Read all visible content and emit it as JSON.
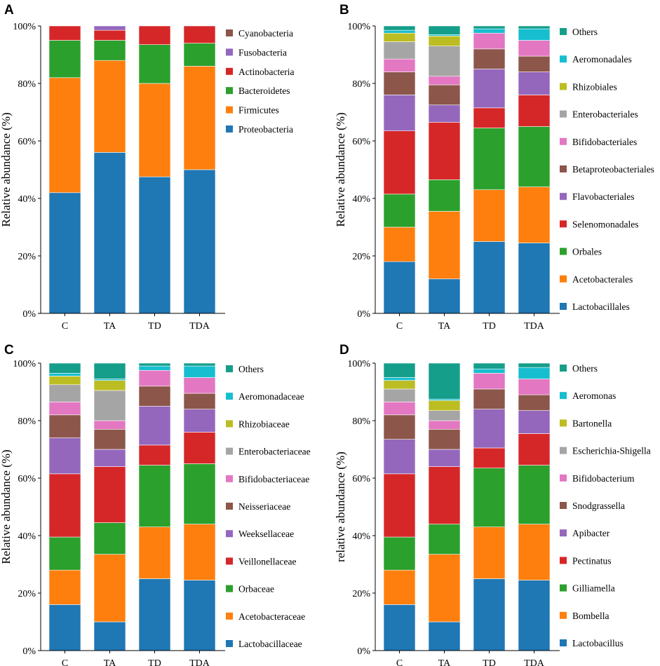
{
  "chart_data": [
    {
      "type": "bar",
      "panel": "A",
      "stacked": true,
      "ylabel": "Relative abundance (%)",
      "ylim": [
        0,
        100
      ],
      "yticks": [
        "0%",
        "20%",
        "40%",
        "60%",
        "80%",
        "100%"
      ],
      "categories": [
        "C",
        "TA",
        "TD",
        "TDA"
      ],
      "series": [
        {
          "name": "Proteobacteria",
          "color": "#1f77b4",
          "values": [
            42,
            56,
            47.5,
            50
          ]
        },
        {
          "name": "Firmicutes",
          "color": "#ff7f0e",
          "values": [
            40,
            32,
            32.5,
            36
          ]
        },
        {
          "name": "Bacteroidetes",
          "color": "#2ca02c",
          "values": [
            13,
            7,
            13.5,
            8
          ]
        },
        {
          "name": "Actinobacteria",
          "color": "#d62728",
          "values": [
            5,
            3.5,
            6.5,
            6
          ]
        },
        {
          "name": "Fusobacteria",
          "color": "#9467bd",
          "values": [
            0,
            1.5,
            0,
            0
          ]
        },
        {
          "name": "Cyanobacteria",
          "color": "#8c564b",
          "values": [
            0,
            0,
            0,
            0
          ]
        }
      ]
    },
    {
      "type": "bar",
      "panel": "B",
      "stacked": true,
      "ylabel": "Relative abundance (%)",
      "ylim": [
        0,
        100
      ],
      "yticks": [
        "0%",
        "20%",
        "40%",
        "60%",
        "80%",
        "100%"
      ],
      "categories": [
        "C",
        "TA",
        "TD",
        "TDA"
      ],
      "series": [
        {
          "name": "Lactobacillales",
          "color": "#1f77b4",
          "values": [
            18,
            12,
            25,
            24.5
          ]
        },
        {
          "name": "Acetobacterales",
          "color": "#ff7f0e",
          "values": [
            12,
            23.5,
            18,
            19.5
          ]
        },
        {
          "name": "Orbales",
          "color": "#2ca02c",
          "values": [
            11.5,
            11,
            21.5,
            21
          ]
        },
        {
          "name": "Selenomonadales",
          "color": "#d62728",
          "values": [
            22,
            20,
            7,
            11
          ]
        },
        {
          "name": "Flavobacteriales",
          "color": "#9467bd",
          "values": [
            12.5,
            6,
            13.5,
            8
          ]
        },
        {
          "name": "Betaproteobacteriales",
          "color": "#8c564b",
          "values": [
            8,
            7,
            7,
            5.5
          ]
        },
        {
          "name": "Bifidobacteriales",
          "color": "#e377c2",
          "values": [
            4.5,
            3,
            5.5,
            5.5
          ]
        },
        {
          "name": "Enterobacteriales",
          "color": "#a5a5a5",
          "values": [
            6,
            10.5,
            0,
            0
          ]
        },
        {
          "name": "Rhizobiales",
          "color": "#bcbd22",
          "values": [
            3,
            3.5,
            0,
            0
          ]
        },
        {
          "name": "Aeromonadales",
          "color": "#17becf",
          "values": [
            1,
            0.5,
            1.5,
            4
          ]
        },
        {
          "name": "Others",
          "color": "#159e8a",
          "values": [
            1.5,
            3,
            1,
            1
          ]
        }
      ]
    },
    {
      "type": "bar",
      "panel": "C",
      "stacked": true,
      "ylabel": "Relative abundance (%)",
      "ylim": [
        0,
        100
      ],
      "yticks": [
        "0%",
        "20%",
        "40%",
        "60%",
        "80%",
        "100%"
      ],
      "categories": [
        "C",
        "TA",
        "TD",
        "TDA"
      ],
      "series": [
        {
          "name": "Lactobacillaceae",
          "color": "#1f77b4",
          "values": [
            16,
            10,
            25,
            24.5
          ]
        },
        {
          "name": "Acetobacteraceae",
          "color": "#ff7f0e",
          "values": [
            12,
            23.5,
            18,
            19.5
          ]
        },
        {
          "name": "Orbaceae",
          "color": "#2ca02c",
          "values": [
            11.5,
            11,
            21.5,
            21
          ]
        },
        {
          "name": "Veillonellaceae",
          "color": "#d62728",
          "values": [
            22,
            19.5,
            7,
            11
          ]
        },
        {
          "name": "Weeksellaceae",
          "color": "#9467bd",
          "values": [
            12.5,
            6,
            13.5,
            8
          ]
        },
        {
          "name": "Neisseriaceae",
          "color": "#8c564b",
          "values": [
            8,
            7,
            7,
            5.5
          ]
        },
        {
          "name": "Bifidobacteriaceae",
          "color": "#e377c2",
          "values": [
            4.5,
            3,
            5.5,
            5.5
          ]
        },
        {
          "name": "Enterobacteriaceae",
          "color": "#a5a5a5",
          "values": [
            6,
            10.5,
            0,
            0
          ]
        },
        {
          "name": "Rhizobiaceae",
          "color": "#bcbd22",
          "values": [
            3,
            3.5,
            0,
            0
          ]
        },
        {
          "name": "Aeromonadaceae",
          "color": "#17becf",
          "values": [
            1,
            0.5,
            1.5,
            4
          ]
        },
        {
          "name": "Others",
          "color": "#159e8a",
          "values": [
            3.5,
            5.5,
            1,
            1
          ]
        }
      ]
    },
    {
      "type": "bar",
      "panel": "D",
      "stacked": true,
      "ylabel": "relative abundance (%)",
      "ylim": [
        0,
        100
      ],
      "yticks": [
        "0%",
        "20%",
        "40%",
        "60%",
        "80%",
        "100%"
      ],
      "categories": [
        "C",
        "TA",
        "TD",
        "TDA"
      ],
      "series": [
        {
          "name": "Lactobacillus",
          "color": "#1f77b4",
          "values": [
            16,
            10,
            25,
            24.5
          ]
        },
        {
          "name": "Bombella",
          "color": "#ff7f0e",
          "values": [
            12,
            23.5,
            18,
            19.5
          ]
        },
        {
          "name": "Gilliamella",
          "color": "#2ca02c",
          "values": [
            11.5,
            10.5,
            20.5,
            20.5
          ]
        },
        {
          "name": "Pectinatus",
          "color": "#d62728",
          "values": [
            22,
            20,
            7,
            11
          ]
        },
        {
          "name": "Apibacter",
          "color": "#9467bd",
          "values": [
            12,
            6,
            13.5,
            8
          ]
        },
        {
          "name": "Snodgrassella",
          "color": "#8c564b",
          "values": [
            8.5,
            7,
            7,
            5.5
          ]
        },
        {
          "name": "Bifidobacterium",
          "color": "#e377c2",
          "values": [
            4.5,
            3,
            5.5,
            5.5
          ]
        },
        {
          "name": "Escherichia-Shigella",
          "color": "#a5a5a5",
          "values": [
            4.5,
            3.5,
            0,
            0
          ]
        },
        {
          "name": "Bartonella",
          "color": "#bcbd22",
          "values": [
            3,
            3.5,
            0,
            0
          ]
        },
        {
          "name": "Aeromonas",
          "color": "#17becf",
          "values": [
            1,
            0.5,
            1.5,
            4
          ]
        },
        {
          "name": "Others",
          "color": "#159e8a",
          "values": [
            5,
            12.5,
            2,
            1.5
          ]
        }
      ]
    }
  ]
}
